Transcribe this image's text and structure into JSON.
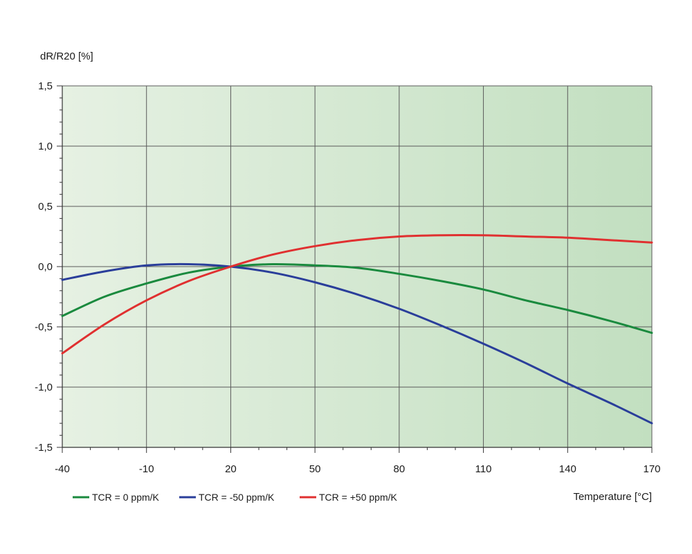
{
  "chart_data": {
    "type": "line",
    "title": "",
    "ylabel": "dR/R20 [%]",
    "xlabel": "Temperature [°C]",
    "xlim": [
      -40,
      170
    ],
    "ylim": [
      -1.5,
      1.5
    ],
    "x_ticks": [
      -40,
      -10,
      20,
      50,
      80,
      110,
      140,
      170
    ],
    "x_tick_labels": [
      "-40",
      "-10",
      "20",
      "50",
      "80",
      "110",
      "140",
      "170"
    ],
    "y_ticks": [
      1.5,
      1.0,
      0.5,
      0.0,
      -0.5,
      -1.0,
      -1.5
    ],
    "y_tick_labels": [
      "1,5",
      "1,0",
      "0,5",
      "0,0",
      "-0,5",
      "-1,0",
      "-1,5"
    ],
    "grid": true,
    "background": "green gradient (light to darker left-to-right)",
    "legend_position": "bottom-left",
    "x": [
      -40,
      -25,
      -10,
      5,
      20,
      35,
      50,
      65,
      80,
      95,
      110,
      125,
      140,
      155,
      170
    ],
    "series": [
      {
        "name": "TCR = 0 ppm/K",
        "color": "#1a8a3e",
        "values": [
          -0.41,
          -0.25,
          -0.14,
          -0.05,
          0.0,
          0.02,
          0.01,
          -0.01,
          -0.06,
          -0.12,
          -0.19,
          -0.28,
          -0.36,
          -0.45,
          -0.55
        ]
      },
      {
        "name": "TCR =  -50 ppm/K",
        "color": "#2a3e9a",
        "values": [
          -0.11,
          -0.04,
          0.01,
          0.02,
          0.0,
          -0.05,
          -0.13,
          -0.23,
          -0.35,
          -0.49,
          -0.64,
          -0.8,
          -0.97,
          -1.13,
          -1.3
        ]
      },
      {
        "name": "TCR =  +50 ppm/K",
        "color": "#e03030",
        "values": [
          -0.72,
          -0.48,
          -0.28,
          -0.12,
          0.0,
          0.1,
          0.17,
          0.22,
          0.25,
          0.26,
          0.26,
          0.25,
          0.24,
          0.22,
          0.2
        ]
      }
    ]
  }
}
